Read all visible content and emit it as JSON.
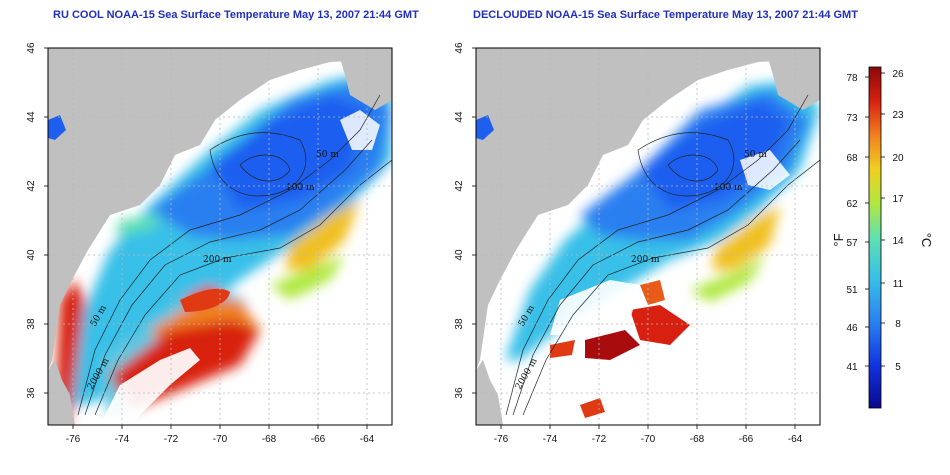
{
  "panels": [
    {
      "title": "RU COOL NOAA-15 Sea Surface Temperature May 13, 2007 21:44 GMT",
      "contour_labels": [
        "50 m",
        "200 m",
        "2000 m",
        "100 m",
        "50 m"
      ],
      "clouds_removed": false
    },
    {
      "title": "DECLOUDED NOAA-15 Sea Surface Temperature May 13, 2007 21:44 GMT",
      "contour_labels": [
        "50 m",
        "200 m",
        "2000 m",
        "100 m",
        "50 m"
      ],
      "clouds_removed": true
    }
  ],
  "axes": {
    "x_ticks": [
      "-76",
      "-74",
      "-72",
      "-70",
      "-68",
      "-66",
      "-64"
    ],
    "y_ticks": [
      "46",
      "44",
      "42",
      "40",
      "38",
      "36"
    ],
    "lon_range": [
      -77.2,
      -62.8
    ],
    "lat_range": [
      35,
      46
    ]
  },
  "colorbar": {
    "fahrenheit_label": "°F",
    "celsius_label": "°C",
    "fahrenheit_ticks": [
      "78",
      "73",
      "68",
      "62",
      "57",
      "51",
      "46",
      "41"
    ],
    "celsius_ticks": [
      "26",
      "23",
      "20",
      "17",
      "14",
      "11",
      "8",
      "5"
    ],
    "colors": [
      "#0a0a8a",
      "#1030e0",
      "#2a7ff0",
      "#38c0e8",
      "#60e0b0",
      "#b0e840",
      "#f0d020",
      "#f08020",
      "#d82010",
      "#8a0808"
    ]
  },
  "colors": {
    "land": "#c0c0c0",
    "cloud": "#ffffff",
    "grid": "#b8b8b8",
    "title": "#1f2fbf"
  }
}
